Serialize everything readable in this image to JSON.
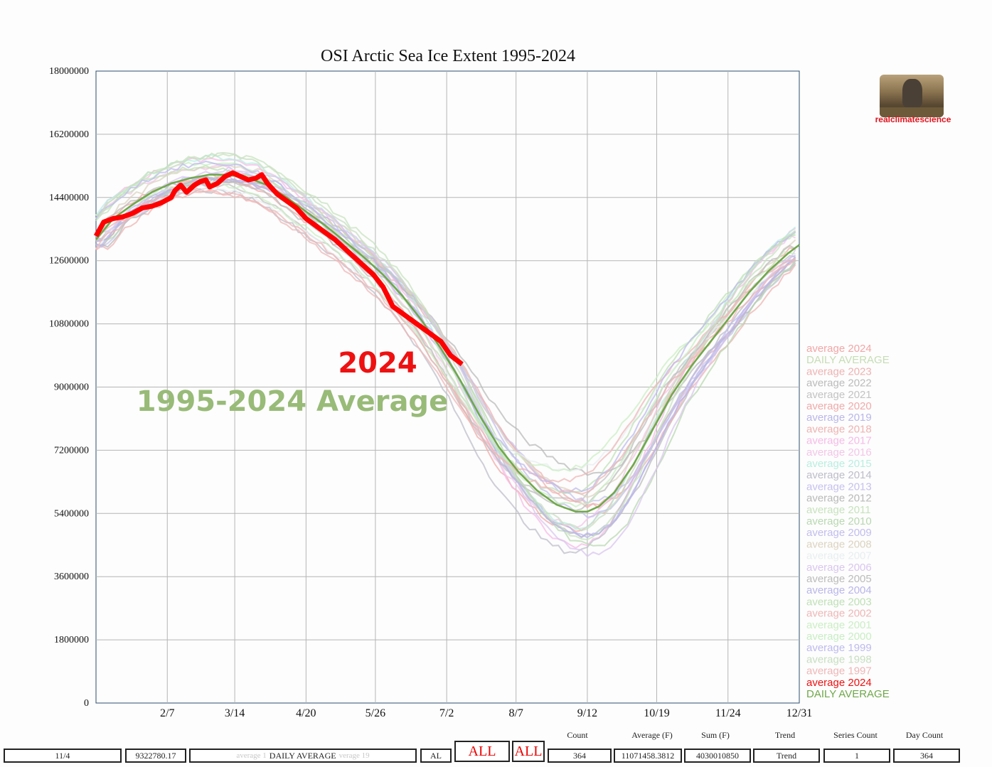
{
  "chart_data": {
    "type": "line",
    "title": "OSI Arctic Sea Ice Extent 1995-2024",
    "ylim": [
      0,
      18000000
    ],
    "xlim": [
      1,
      366
    ],
    "yticks": [
      "18000000",
      "16200000",
      "14400000",
      "12600000",
      "10800000",
      "9000000",
      "7200000",
      "5400000",
      "3600000",
      "1800000",
      "0"
    ],
    "xticks": [
      {
        "label": "2/7",
        "day": 38
      },
      {
        "label": "3/14",
        "day": 73
      },
      {
        "label": "4/20",
        "day": 110
      },
      {
        "label": "5/26",
        "day": 146
      },
      {
        "label": "7/2",
        "day": 183
      },
      {
        "label": "8/7",
        "day": 219
      },
      {
        "label": "9/12",
        "day": 256
      },
      {
        "label": "10/19",
        "day": 292
      },
      {
        "label": "11/24",
        "day": 329
      },
      {
        "label": "12/31",
        "day": 366
      }
    ],
    "annotations": {
      "year_label": "2024",
      "average_label": "1995-2024 Average"
    },
    "series": [
      {
        "name": "average 2024",
        "color": "#ff0000",
        "width": 7,
        "points": [
          [
            1,
            13300000
          ],
          [
            5,
            13700000
          ],
          [
            10,
            13800000
          ],
          [
            15,
            13850000
          ],
          [
            20,
            13950000
          ],
          [
            25,
            14100000
          ],
          [
            30,
            14150000
          ],
          [
            35,
            14250000
          ],
          [
            40,
            14400000
          ],
          [
            42,
            14600000
          ],
          [
            45,
            14750000
          ],
          [
            48,
            14550000
          ],
          [
            52,
            14750000
          ],
          [
            55,
            14850000
          ],
          [
            58,
            14900000
          ],
          [
            60,
            14700000
          ],
          [
            64,
            14800000
          ],
          [
            68,
            15000000
          ],
          [
            72,
            15100000
          ],
          [
            76,
            15000000
          ],
          [
            80,
            14900000
          ],
          [
            84,
            14950000
          ],
          [
            87,
            15050000
          ],
          [
            90,
            14800000
          ],
          [
            95,
            14500000
          ],
          [
            100,
            14300000
          ],
          [
            105,
            14100000
          ],
          [
            110,
            13800000
          ],
          [
            115,
            13600000
          ],
          [
            120,
            13400000
          ],
          [
            125,
            13200000
          ],
          [
            130,
            12950000
          ],
          [
            135,
            12700000
          ],
          [
            140,
            12450000
          ],
          [
            145,
            12200000
          ],
          [
            150,
            11850000
          ],
          [
            155,
            11300000
          ],
          [
            160,
            11100000
          ],
          [
            165,
            10900000
          ],
          [
            170,
            10700000
          ],
          [
            175,
            10500000
          ],
          [
            180,
            10300000
          ],
          [
            185,
            9900000
          ],
          [
            191,
            9650000
          ]
        ]
      },
      {
        "name": "DAILY AVERAGE",
        "color": "#6fa84a",
        "width": 2.5,
        "points": [
          [
            1,
            13200000
          ],
          [
            10,
            13800000
          ],
          [
            20,
            14200000
          ],
          [
            30,
            14550000
          ],
          [
            40,
            14800000
          ],
          [
            50,
            14950000
          ],
          [
            60,
            15050000
          ],
          [
            70,
            15050000
          ],
          [
            80,
            14950000
          ],
          [
            90,
            14750000
          ],
          [
            100,
            14400000
          ],
          [
            110,
            14000000
          ],
          [
            120,
            13600000
          ],
          [
            130,
            13150000
          ],
          [
            140,
            12700000
          ],
          [
            150,
            12200000
          ],
          [
            160,
            11600000
          ],
          [
            170,
            10900000
          ],
          [
            180,
            10100000
          ],
          [
            190,
            9200000
          ],
          [
            200,
            8200000
          ],
          [
            210,
            7300000
          ],
          [
            220,
            6600000
          ],
          [
            230,
            6050000
          ],
          [
            240,
            5650000
          ],
          [
            250,
            5450000
          ],
          [
            256,
            5450000
          ],
          [
            262,
            5600000
          ],
          [
            270,
            6000000
          ],
          [
            280,
            6800000
          ],
          [
            290,
            7800000
          ],
          [
            300,
            8800000
          ],
          [
            310,
            9600000
          ],
          [
            320,
            10300000
          ],
          [
            330,
            11000000
          ],
          [
            340,
            11700000
          ],
          [
            350,
            12300000
          ],
          [
            360,
            12800000
          ],
          [
            366,
            13050000
          ]
        ]
      }
    ],
    "legend": [
      "average 2024",
      "DAILY AVERAGE",
      "average 2023",
      "average 2022",
      "average 2021",
      "average 2020",
      "average 2019",
      "average 2018",
      "average 2017",
      "average 2016",
      "average 2015",
      "average 2014",
      "average 2013",
      "average 2012",
      "average 2011",
      "average 2010",
      "average 2009",
      "average 2008",
      "average 2007",
      "average 2006",
      "average 2005",
      "average 2004",
      "average 2003",
      "average 2002",
      "average 2001",
      "average 2000",
      "average 1999",
      "average 1998",
      "average 1997"
    ],
    "legend_highlight": [
      "average 2024",
      "DAILY AVERAGE"
    ],
    "legend_colors": [
      "#f2a6a6",
      "#c6ddb4",
      "#efb2b2",
      "#bbbbbb",
      "#c3c3c3",
      "#f0aaaa",
      "#b9b6ea",
      "#efb2b2",
      "#f5bbe6",
      "#f3c6e8",
      "#b8eee0",
      "#bdbdc9",
      "#c6c1ee",
      "#b9b9b9",
      "#c7e2bd",
      "#b8d8b0",
      "#c2bdee",
      "#dcd3c0",
      "#e8eef0",
      "#d9c6ef",
      "#bcbcbc",
      "#b9b6ea",
      "#bfe0b6",
      "#efb6b6",
      "#cbeec3",
      "#c7eec3",
      "#bdbaee",
      "#c7dec0",
      "#efb6b6"
    ],
    "legend_position": "right",
    "grid": true
  },
  "branding": {
    "label": "realclimatescience"
  },
  "footer": {
    "col_labels": [
      "Count",
      "Average (F)",
      "Sum (F)",
      "Trend",
      "Series Count",
      "Day Count"
    ],
    "date_value": "11/4",
    "value_field": "9322780.17",
    "series_field": "DAILY AVERAGE",
    "series_ghost": "average 1",
    "series_ghost2": "verage 19",
    "al_field": "AL",
    "all_button_1": "ALL",
    "all_button_2": "ALL",
    "count_value": "364",
    "average_value": "11071458.3812",
    "sum_value": "4030010850",
    "trend_value": "Trend",
    "series_count_value": "1",
    "day_count_value": "364"
  }
}
